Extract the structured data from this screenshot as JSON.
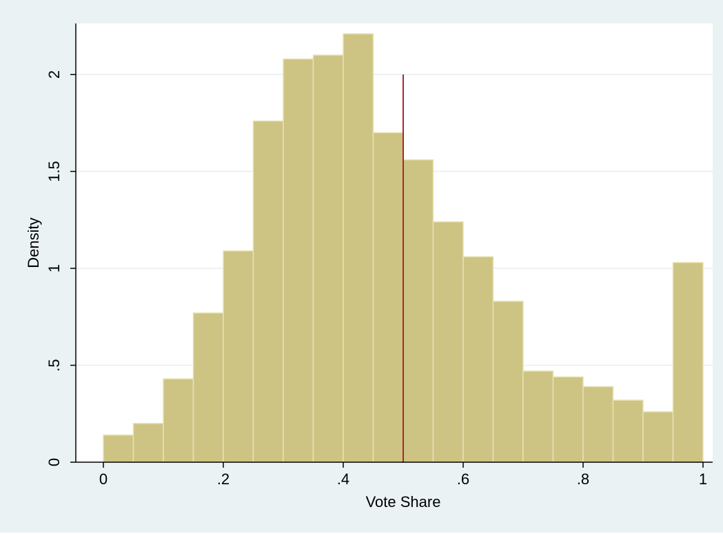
{
  "chart_data": {
    "type": "bar",
    "subtype": "histogram",
    "title": "",
    "xlabel": "Vote Share",
    "ylabel": "Density",
    "xlim": [
      0,
      1
    ],
    "ylim": [
      0,
      2.3
    ],
    "bin_width": 0.05,
    "bins": [
      {
        "start": 0.0,
        "end": 0.05,
        "value": 0.14
      },
      {
        "start": 0.05,
        "end": 0.1,
        "value": 0.2
      },
      {
        "start": 0.1,
        "end": 0.15,
        "value": 0.43
      },
      {
        "start": 0.15,
        "end": 0.2,
        "value": 0.77
      },
      {
        "start": 0.2,
        "end": 0.25,
        "value": 1.09
      },
      {
        "start": 0.25,
        "end": 0.3,
        "value": 1.76
      },
      {
        "start": 0.3,
        "end": 0.35,
        "value": 2.08
      },
      {
        "start": 0.35,
        "end": 0.4,
        "value": 2.1
      },
      {
        "start": 0.4,
        "end": 0.45,
        "value": 2.21
      },
      {
        "start": 0.45,
        "end": 0.5,
        "value": 1.7
      },
      {
        "start": 0.5,
        "end": 0.55,
        "value": 1.56
      },
      {
        "start": 0.55,
        "end": 0.6,
        "value": 1.24
      },
      {
        "start": 0.6,
        "end": 0.65,
        "value": 1.06
      },
      {
        "start": 0.65,
        "end": 0.7,
        "value": 0.83
      },
      {
        "start": 0.7,
        "end": 0.75,
        "value": 0.47
      },
      {
        "start": 0.75,
        "end": 0.8,
        "value": 0.44
      },
      {
        "start": 0.8,
        "end": 0.85,
        "value": 0.39
      },
      {
        "start": 0.85,
        "end": 0.9,
        "value": 0.32
      },
      {
        "start": 0.9,
        "end": 0.95,
        "value": 0.26
      },
      {
        "start": 0.95,
        "end": 1.0,
        "value": 1.03
      }
    ],
    "x_ticks": [
      {
        "value": 0,
        "label": "0"
      },
      {
        "value": 0.2,
        "label": ".2"
      },
      {
        "value": 0.4,
        "label": ".4"
      },
      {
        "value": 0.6,
        "label": ".6"
      },
      {
        "value": 0.8,
        "label": ".8"
      },
      {
        "value": 1,
        "label": "1"
      }
    ],
    "y_ticks": [
      {
        "value": 0,
        "label": "0"
      },
      {
        "value": 0.5,
        "label": ".5"
      },
      {
        "value": 1,
        "label": "1"
      },
      {
        "value": 1.5,
        "label": "1.5"
      },
      {
        "value": 2,
        "label": "2"
      }
    ],
    "reference_line": {
      "x": 0.5,
      "y_from": 0,
      "y_to": 2.0,
      "color": "#a52a2a"
    },
    "grid": "horizontal",
    "legend": "none",
    "colors": {
      "outer_background": "#eaf2f3",
      "plot_background": "#ffffff",
      "bar_fill": "#cdc383",
      "bar_edge": "#e8e2b4",
      "gridline": "#e5eef1",
      "axis": "#000000"
    }
  }
}
